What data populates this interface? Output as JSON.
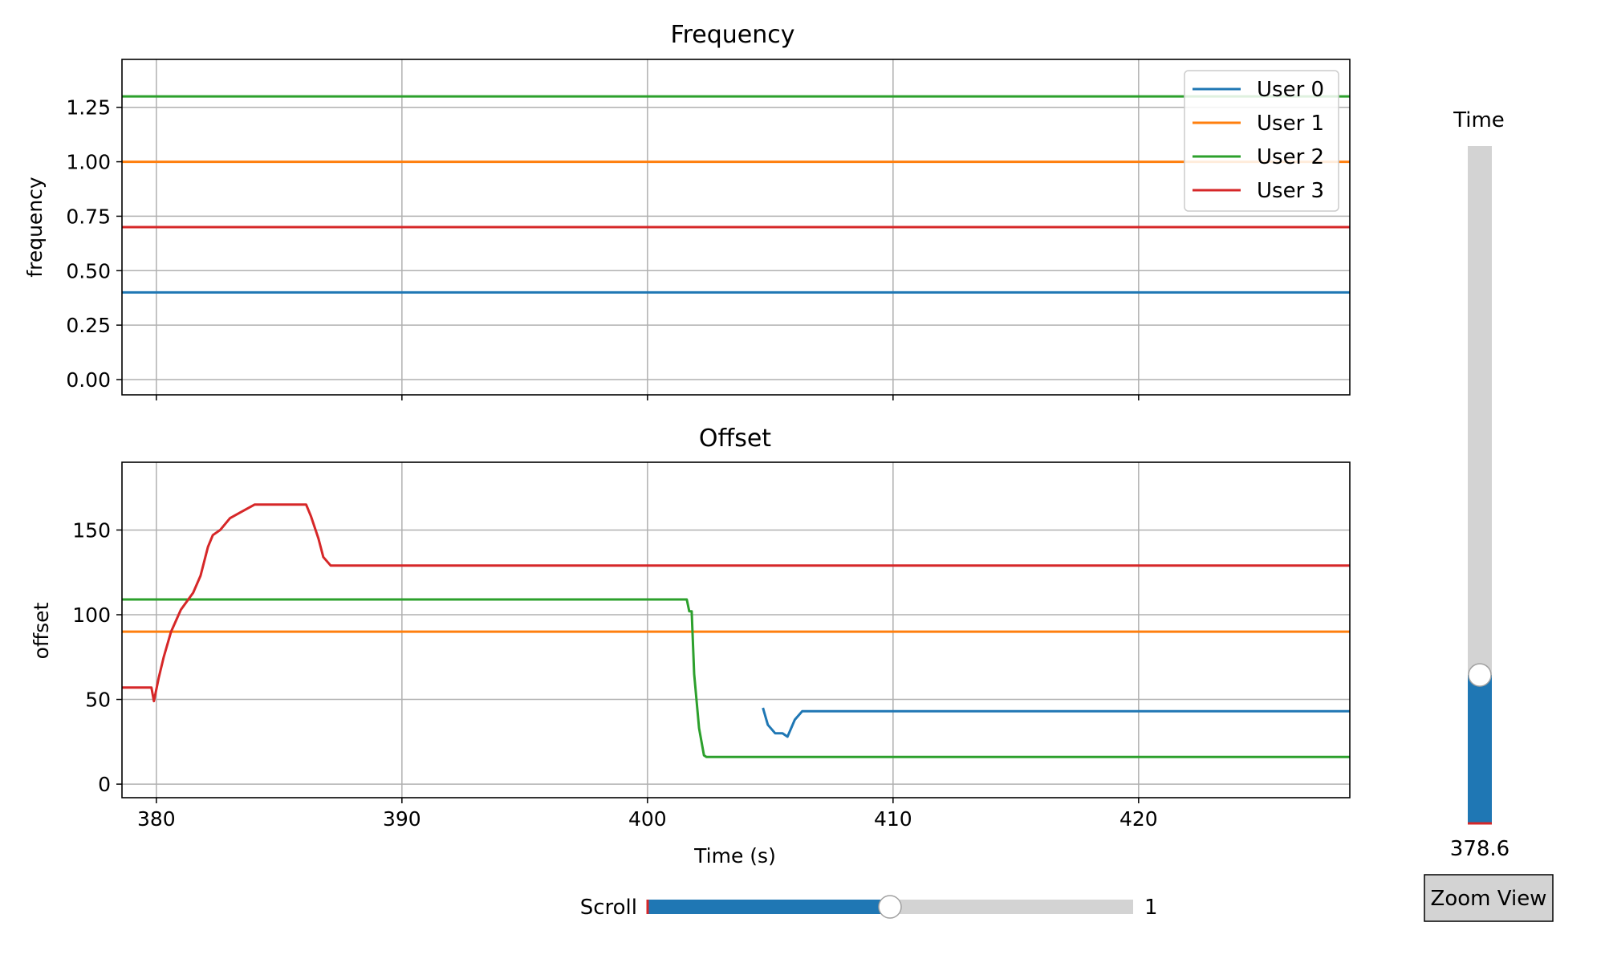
{
  "chart_data": [
    {
      "type": "line",
      "title": "Frequency",
      "xlabel": "",
      "ylabel": "frequency",
      "xlim": [
        378.6,
        428.6
      ],
      "ylim": [
        -0.07,
        1.47
      ],
      "xticks": [
        380,
        390,
        400,
        410,
        420
      ],
      "xtick_labels_visible": false,
      "yticks": [
        0.0,
        0.25,
        0.5,
        0.75,
        1.0,
        1.25
      ],
      "ytick_labels": [
        "0.00",
        "0.25",
        "0.50",
        "0.75",
        "1.00",
        "1.25"
      ],
      "grid": true,
      "legend": "top-right",
      "series": [
        {
          "name": "User 0",
          "color": "#1f77b4",
          "points": [
            [
              378.6,
              0.4
            ],
            [
              428.6,
              0.4
            ]
          ]
        },
        {
          "name": "User 1",
          "color": "#ff7f0e",
          "points": [
            [
              378.6,
              1.0
            ],
            [
              428.6,
              1.0
            ]
          ]
        },
        {
          "name": "User 2",
          "color": "#2ca02c",
          "points": [
            [
              378.6,
              1.3
            ],
            [
              428.6,
              1.3
            ]
          ]
        },
        {
          "name": "User 3",
          "color": "#d62728",
          "points": [
            [
              378.6,
              0.7
            ],
            [
              428.6,
              0.7
            ]
          ]
        }
      ]
    },
    {
      "type": "line",
      "title": "Offset",
      "xlabel": "Time (s)",
      "ylabel": "offset",
      "xlim": [
        378.6,
        428.6
      ],
      "ylim": [
        -8,
        190
      ],
      "xticks": [
        380,
        390,
        400,
        410,
        420
      ],
      "xtick_labels": [
        "380",
        "390",
        "400",
        "410",
        "420"
      ],
      "yticks": [
        0,
        50,
        100,
        150
      ],
      "ytick_labels": [
        "0",
        "50",
        "100",
        "150"
      ],
      "grid": true,
      "series": [
        {
          "name": "User 0",
          "color": "#1f77b4",
          "points": [
            [
              404.7,
              45
            ],
            [
              404.9,
              35
            ],
            [
              405.2,
              30
            ],
            [
              405.5,
              30
            ],
            [
              405.7,
              28
            ],
            [
              406.0,
              38
            ],
            [
              406.3,
              43
            ],
            [
              428.6,
              43
            ]
          ]
        },
        {
          "name": "User 1",
          "color": "#ff7f0e",
          "points": [
            [
              378.6,
              90
            ],
            [
              428.6,
              90
            ]
          ]
        },
        {
          "name": "User 2",
          "color": "#2ca02c",
          "points": [
            [
              378.6,
              109
            ],
            [
              401.6,
              109
            ],
            [
              401.7,
              102
            ],
            [
              401.8,
              102
            ],
            [
              401.9,
              65
            ],
            [
              402.1,
              33
            ],
            [
              402.3,
              17
            ],
            [
              402.4,
              16
            ],
            [
              428.6,
              16
            ]
          ]
        },
        {
          "name": "User 3",
          "color": "#d62728",
          "points": [
            [
              378.6,
              57
            ],
            [
              379.8,
              57
            ],
            [
              379.9,
              49
            ],
            [
              380.1,
              63
            ],
            [
              380.3,
              75
            ],
            [
              380.6,
              90
            ],
            [
              381.0,
              103
            ],
            [
              381.5,
              113
            ],
            [
              381.8,
              123
            ],
            [
              382.1,
              140
            ],
            [
              382.3,
              147
            ],
            [
              382.6,
              150
            ],
            [
              383.0,
              157
            ],
            [
              383.5,
              161
            ],
            [
              384.0,
              165
            ],
            [
              385.0,
              165
            ],
            [
              386.1,
              165
            ],
            [
              386.3,
              158
            ],
            [
              386.6,
              145
            ],
            [
              386.8,
              134
            ],
            [
              387.1,
              129
            ],
            [
              428.6,
              129
            ]
          ]
        }
      ]
    }
  ],
  "legend": {
    "items": [
      {
        "label": "User 0",
        "color": "#1f77b4"
      },
      {
        "label": "User 1",
        "color": "#ff7f0e"
      },
      {
        "label": "User 2",
        "color": "#2ca02c"
      },
      {
        "label": "User 3",
        "color": "#d62728"
      }
    ]
  },
  "controls": {
    "time_slider": {
      "label": "Time",
      "value_text": "378.6",
      "fraction": 0.22
    },
    "scroll_slider": {
      "label": "Scroll",
      "value_text": "1",
      "fraction": 0.5
    },
    "zoom_button": {
      "label": "Zoom View"
    }
  },
  "colors": {
    "slider_fill": "#1f77b4",
    "slider_track": "#d3d3d3",
    "grid": "#b0b0b0",
    "button_bg": "#d3d3d3"
  }
}
